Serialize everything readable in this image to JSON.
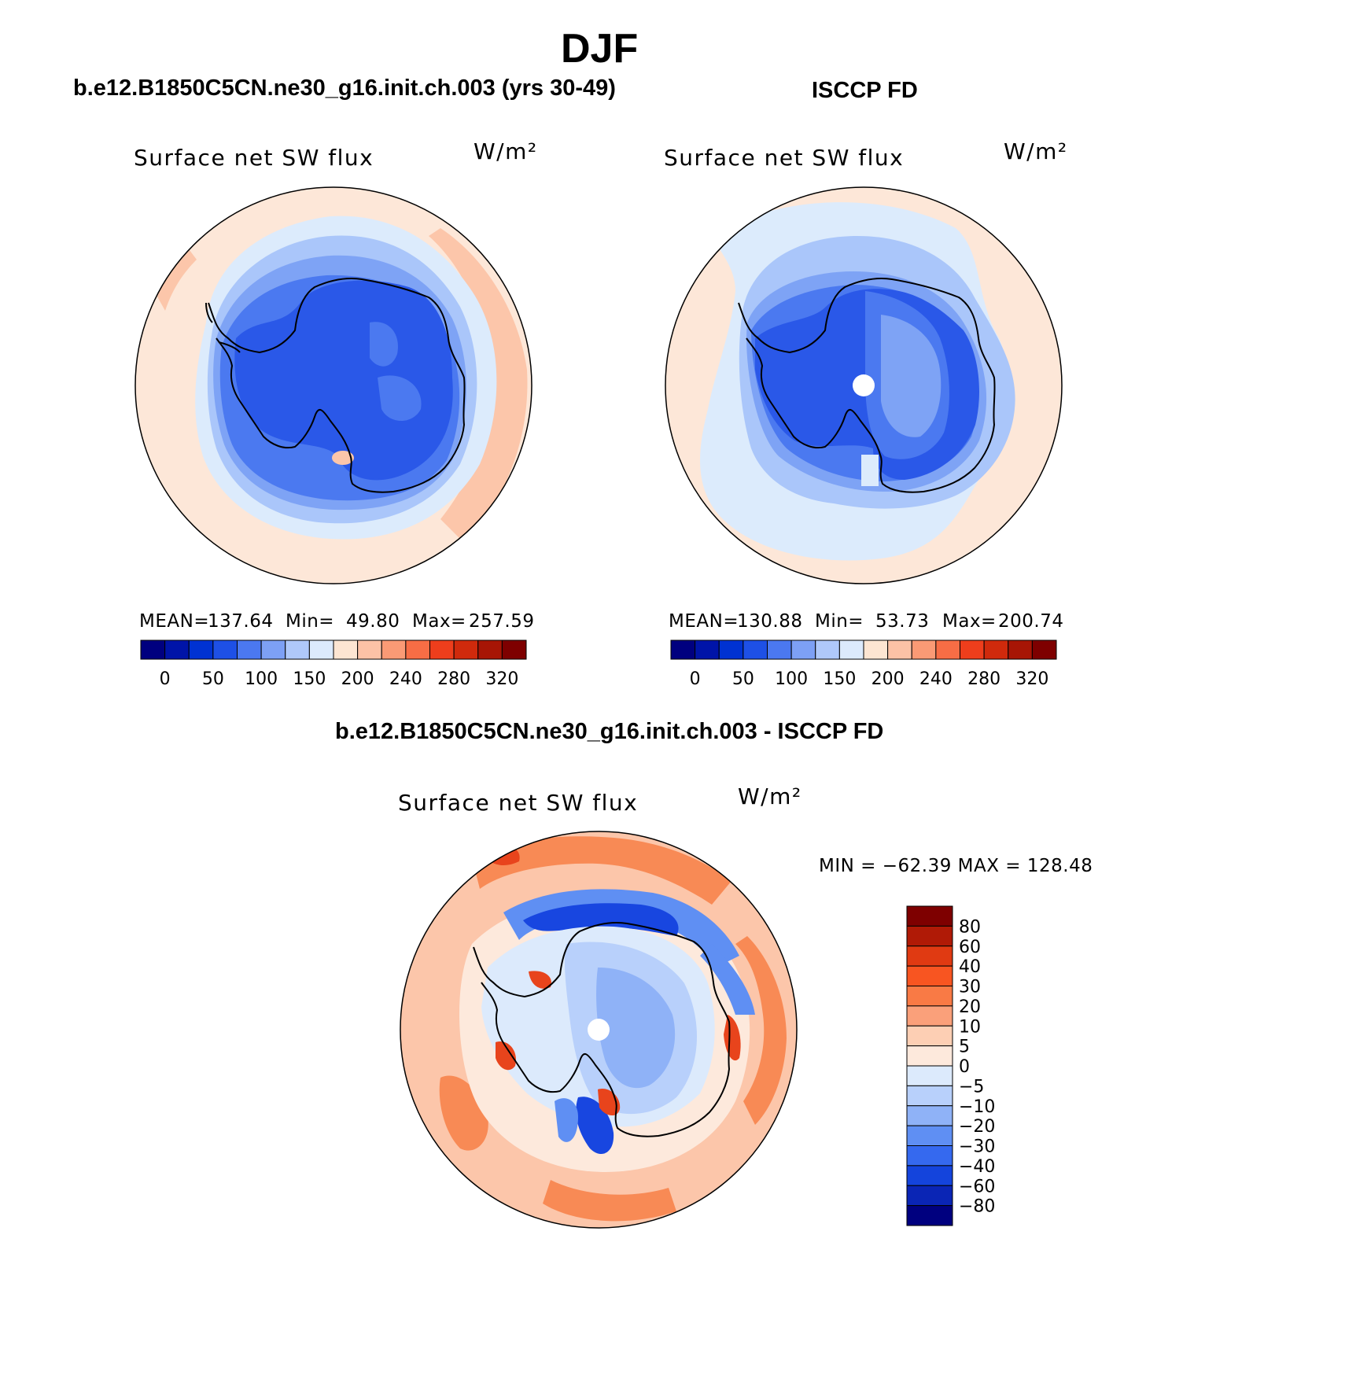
{
  "title": "DJF",
  "panels": [
    {
      "heading": "b.e12.B1850C5CN.ne30_g16.init.ch.003 (yrs 30-49)",
      "variable": "Surface net SW flux",
      "units": "W/m²",
      "stats": {
        "mean_label": "MEAN=",
        "mean": "137.64",
        "min_label": "Min=",
        "min": "49.80",
        "max_label": "Max=",
        "max": "257.59"
      }
    },
    {
      "heading": "ISCCP FD",
      "variable": "Surface net SW flux",
      "units": "W/m²",
      "stats": {
        "mean_label": "MEAN=",
        "mean": "130.88",
        "min_label": "Min=",
        "min": "53.73",
        "max_label": "Max=",
        "max": "200.74"
      }
    },
    {
      "heading": "b.e12.B1850C5CN.ne30_g16.init.ch.003 - ISCCP FD",
      "variable": "Surface net SW flux",
      "units": "W/m²",
      "stats_text": "MIN = −62.39 MAX = 128.48"
    }
  ],
  "colorbar_main": {
    "colors": [
      "#00007f",
      "#0014a8",
      "#0032d2",
      "#1e50e6",
      "#4b78f0",
      "#7da0f5",
      "#afc8fa",
      "#dceafc",
      "#fde5d2",
      "#fcc2a6",
      "#fa9a75",
      "#f76d45",
      "#ee3e1c",
      "#d02a0c",
      "#a71505",
      "#7e0000"
    ],
    "labels": [
      "0",
      "50",
      "100",
      "150",
      "200",
      "240",
      "280",
      "320"
    ]
  },
  "colorbar_diff": {
    "colors_top_to_bottom": [
      "#7e0000",
      "#b01a06",
      "#e03a12",
      "#f85521",
      "#f97a45",
      "#faa07a",
      "#fdcfb4",
      "#fde9dc",
      "#dceafc",
      "#b8d0fb",
      "#8fb2f7",
      "#5f8ff3",
      "#3569ef",
      "#1444dc",
      "#0a25b5",
      "#00007f"
    ],
    "labels_top_to_bottom": [
      "80",
      "60",
      "40",
      "30",
      "20",
      "10",
      "5",
      "0",
      "−5",
      "−10",
      "−20",
      "−30",
      "−40",
      "−60",
      "−80"
    ]
  },
  "map_fill_colors": {
    "ocean_warm_light": "#fde7d8",
    "ocean_warm_mid": "#fcc6aa",
    "shelf_light_blue": "#dcebfc",
    "shelf_mid_blue": "#aac6fa",
    "shelf_blue": "#7ea3f5",
    "ice_blue": "#4b79f0",
    "ice_deep_blue": "#2a58e8",
    "diff_orange": "#f88a55",
    "diff_red": "#e8441c",
    "diff_dark_blue": "#1846e0"
  }
}
